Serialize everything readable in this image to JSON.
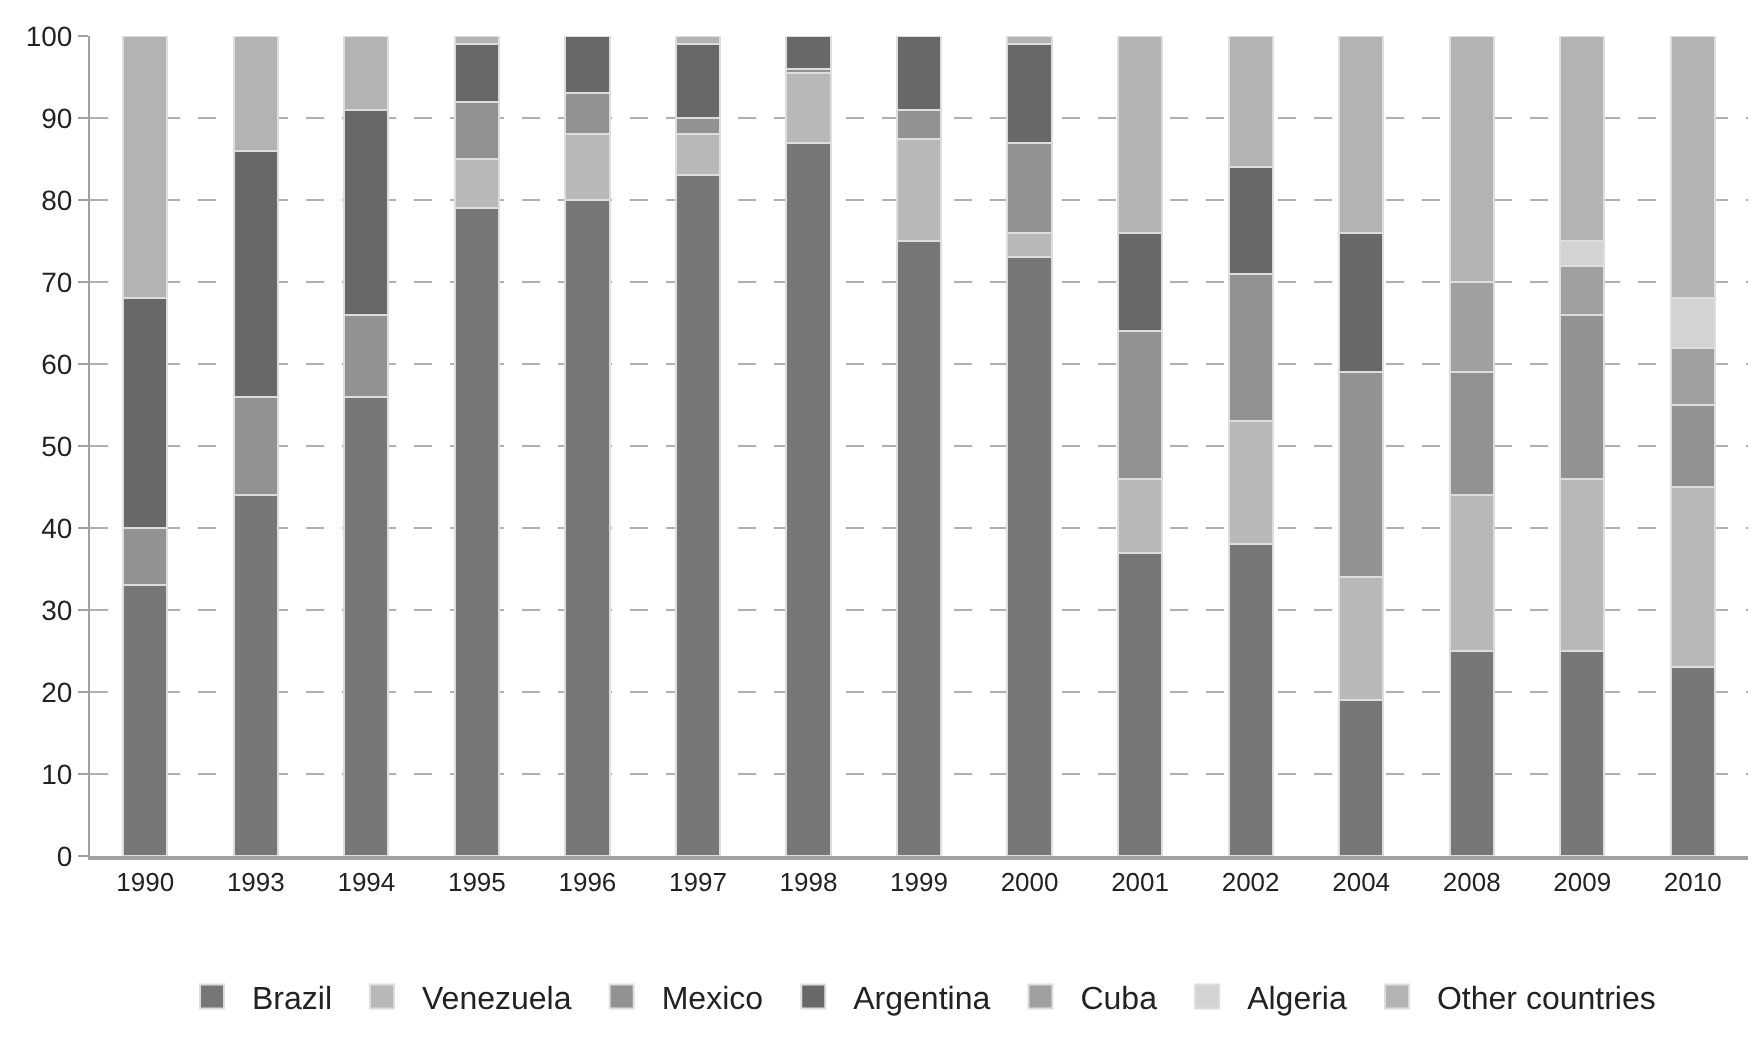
{
  "chart_data": {
    "type": "bar",
    "stacked": true,
    "categories": [
      "1990",
      "1993",
      "1994",
      "1995",
      "1996",
      "1997",
      "1998",
      "1999",
      "2000",
      "2001",
      "2002",
      "2004",
      "2008",
      "2009",
      "2010"
    ],
    "series": [
      {
        "name": "Brazil",
        "color": "#777777",
        "values": [
          33,
          44,
          56,
          79,
          80,
          83,
          87,
          75,
          73,
          37,
          38,
          19,
          25,
          25,
          23
        ]
      },
      {
        "name": "Venezuela",
        "color": "#b8b8b8",
        "values": [
          0,
          0,
          0,
          6,
          8,
          5,
          8.5,
          12.5,
          3,
          9,
          15,
          15,
          19,
          21,
          22
        ]
      },
      {
        "name": "Mexico",
        "color": "#929292",
        "values": [
          7,
          12,
          10,
          7,
          5,
          2,
          0.5,
          3.5,
          11,
          18,
          18,
          25,
          15,
          20,
          10
        ]
      },
      {
        "name": "Argentina",
        "color": "#686868",
        "values": [
          28,
          30,
          25,
          7,
          7,
          9,
          4,
          9,
          12,
          12,
          13,
          17,
          0,
          0,
          0
        ]
      },
      {
        "name": "Cuba",
        "color": "#a0a0a0",
        "values": [
          0,
          0,
          0,
          0,
          0,
          0,
          0,
          0,
          0,
          0,
          0,
          0,
          11,
          6,
          7
        ]
      },
      {
        "name": "Algeria",
        "color": "#d3d3d3",
        "values": [
          0,
          0,
          0,
          0,
          0,
          0,
          0,
          0,
          0,
          0,
          0,
          0,
          0,
          3,
          6
        ]
      },
      {
        "name": "Other countries",
        "color": "#b3b3b3",
        "values": [
          32,
          14,
          9,
          1,
          0,
          1,
          0,
          0,
          1,
          24,
          16,
          24,
          30,
          25,
          32
        ]
      }
    ],
    "ylim": [
      0,
      100
    ],
    "yticks": [
      0,
      10,
      20,
      30,
      40,
      50,
      60,
      70,
      80,
      90,
      100
    ],
    "grid": "y",
    "legend": "bottom"
  }
}
